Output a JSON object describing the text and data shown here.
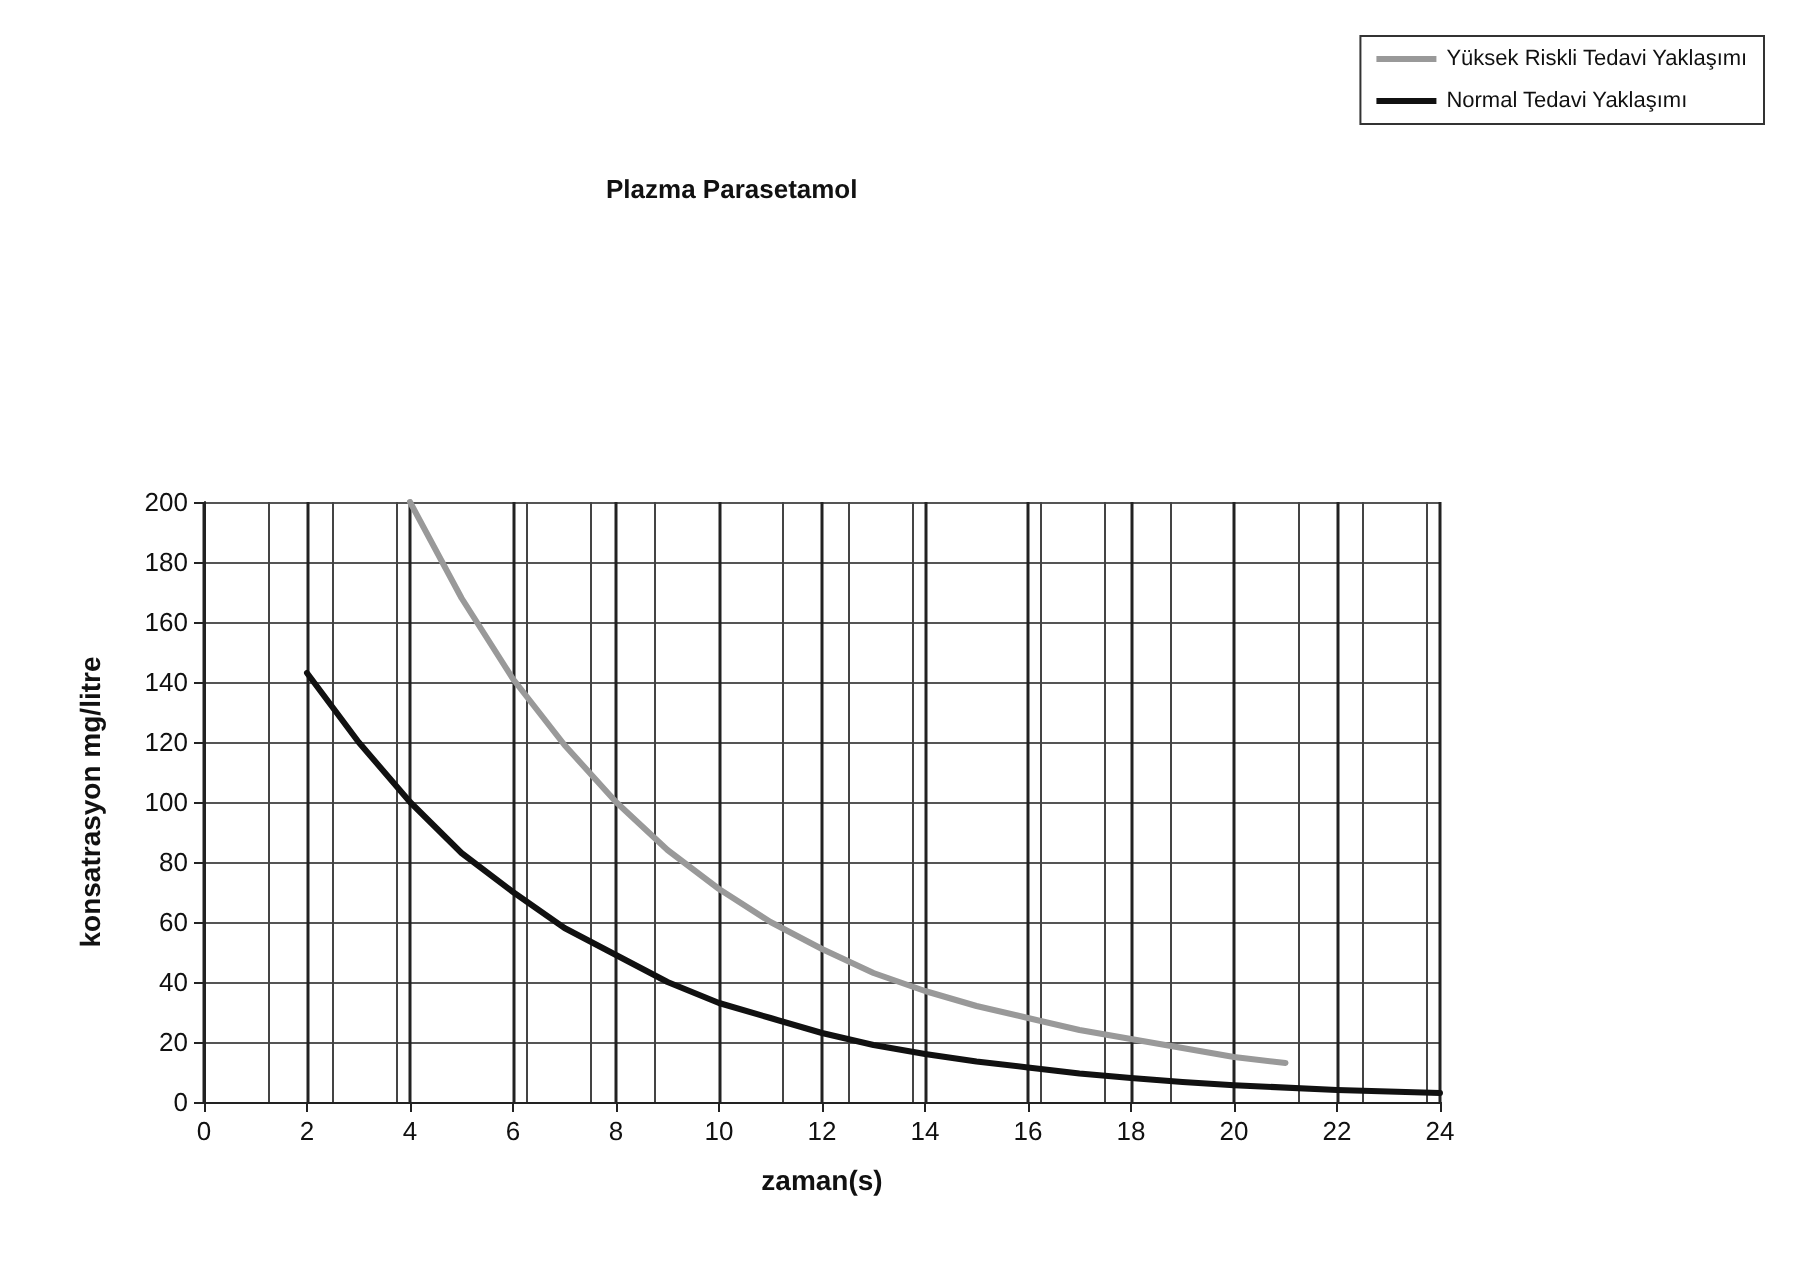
{
  "chart_data": {
    "type": "line",
    "title": "Plazma Parasetamol",
    "xlabel": "zaman(s)",
    "ylabel": "konsatrasyon mg/litre",
    "xlim": [
      0,
      24
    ],
    "xticks": [
      0,
      2,
      4,
      6,
      8,
      10,
      12,
      14,
      16,
      18,
      20,
      22,
      24
    ],
    "ylim": [
      0,
      200
    ],
    "yticks": [
      0,
      20,
      40,
      60,
      80,
      100,
      120,
      140,
      160,
      180,
      200
    ],
    "grid": true,
    "legend": "top right",
    "marker": "none",
    "line_style": "solid",
    "series": [
      {
        "name": "Yüksek Riskli Tedavi Yaklaşımı",
        "color": "#999999",
        "x": [
          4,
          5,
          6,
          7,
          8,
          9,
          10,
          11,
          12,
          13,
          14,
          15,
          16,
          17,
          18,
          19,
          20,
          21
        ],
        "values": [
          200,
          168,
          141,
          119,
          100,
          84,
          71,
          60,
          51,
          43,
          37,
          32,
          28,
          24,
          21,
          18,
          15,
          13
        ]
      },
      {
        "name": "Normal Tedavi Yaklaşımı",
        "color": "#111111",
        "x": [
          2,
          3,
          4,
          5,
          6,
          7,
          8,
          9,
          10,
          11,
          12,
          13,
          14,
          15,
          16,
          17,
          18,
          19,
          20,
          22,
          24
        ],
        "values": [
          143,
          120,
          100,
          83,
          70,
          58,
          49,
          40,
          33,
          28,
          23,
          19,
          16,
          13.5,
          11.5,
          9.5,
          8,
          6.7,
          5.6,
          4,
          3
        ]
      }
    ]
  }
}
